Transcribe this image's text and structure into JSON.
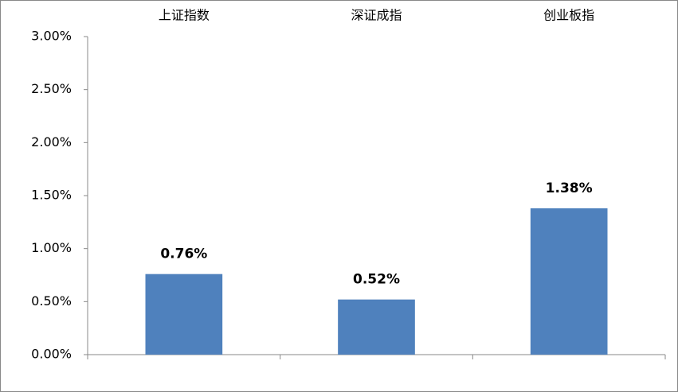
{
  "chart_data": {
    "type": "bar",
    "categories": [
      "上证指数",
      "深证成指",
      "创业板指"
    ],
    "values": [
      0.76,
      0.52,
      1.38
    ],
    "value_labels": [
      "0.76%",
      "0.52%",
      "1.38%"
    ],
    "color": "#4f81bd",
    "ylim": [
      0,
      3
    ],
    "yticks": [
      {
        "value": 0,
        "label": "0.00%"
      },
      {
        "value": 0.5,
        "label": "0.50%"
      },
      {
        "value": 1,
        "label": "1.00%"
      },
      {
        "value": 1.5,
        "label": "1.50%"
      },
      {
        "value": 2,
        "label": "2.00%"
      },
      {
        "value": 2.5,
        "label": "2.50%"
      },
      {
        "value": 3,
        "label": "3.00%"
      }
    ],
    "grid": false
  }
}
